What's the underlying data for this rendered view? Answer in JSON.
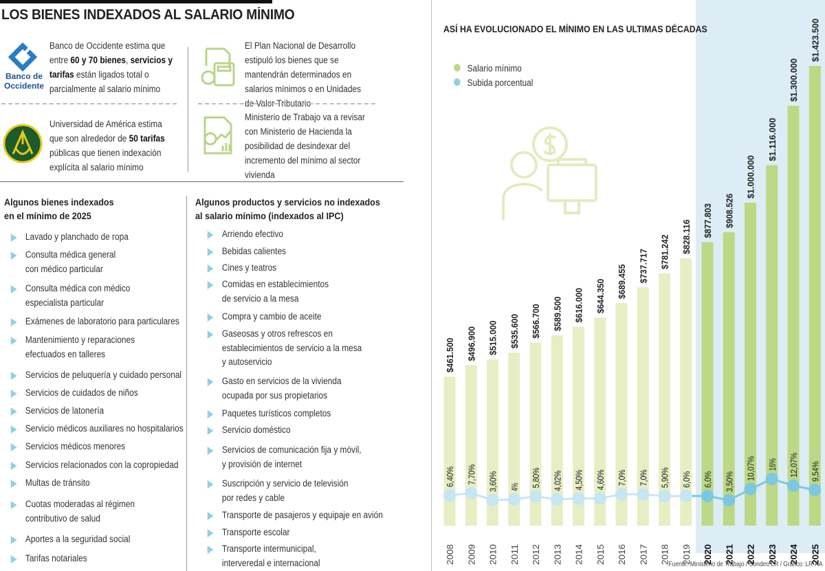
{
  "title": "LOS BIENES INDEXADOS AL SALARIO MÍNIMO",
  "notes": [
    {
      "logo": "Banco de Occidente",
      "pre": "Banco de Occidente estima que entre ",
      "bold1": "60 y 70 bienes",
      "mid": ", ",
      "bold2": "servicios y tarifas",
      "post": " están ligados total o parcialmente al salario mínimo"
    },
    {
      "logo": "Universidad de América",
      "pre": "Universidad de América estima que son alrededor de ",
      "bold1": "50 tarifas",
      "post": " públicas que tienen indexación explícita al salario mínimo"
    },
    {
      "icon": "calculator-coins-icon",
      "text": "El Plan Nacional de Desarrollo estipuló los bienes que se mantendrán determinados en salarios mínimos o en Unidades de Valor Tributario"
    },
    {
      "icon": "document-chart-coins-icon",
      "text": "Ministerio de Trabajo va a revisar con Ministerio de Hacienda la posibilidad de desindexar del incremento del mínimo al sector vivienda"
    }
  ],
  "indexed": {
    "heading": [
      "Algunos bienes indexados",
      "en el mínimo de 2025"
    ],
    "items": [
      [
        "Lavado y planchado de ropa"
      ],
      [
        "Consulta médica general",
        "con médico particular"
      ],
      [
        "Consulta médica con médico",
        "especialista particular"
      ],
      [
        "Exámenes de laboratorio para particulares"
      ],
      [
        "Mantenimiento y reparaciones",
        "efectuados en talleres"
      ],
      [
        "Servicios de peluquería y cuidado personal"
      ],
      [
        "Servicios de cuidados de niños"
      ],
      [
        "Servicios de latonería"
      ],
      [
        "Servicio médicos auxiliares no hospitalarios"
      ],
      [
        "Servicios médicos menores"
      ],
      [
        "Servicios relacionados con la copropiedad"
      ],
      [
        "Multas de tránsito"
      ],
      [
        "Cuotas moderadas al régimen",
        "contributivo de salud"
      ],
      [
        "Aportes a la seguridad social"
      ],
      [
        "Tarifas notariales"
      ]
    ]
  },
  "not_indexed": {
    "heading": [
      "Algunos productos y servicios no indexados",
      "al salario mínimo (indexados al IPC)"
    ],
    "items": [
      [
        "Arriendo efectivo"
      ],
      [
        "Bebidas calientes"
      ],
      [
        "Cines y teatros"
      ],
      [
        "Comidas en establecimientos",
        "de servicio a la mesa"
      ],
      [
        "Compra y cambio de aceite"
      ],
      [
        "Gaseosas y otros refrescos en",
        "establecimientos de servicio a la mesa",
        "y autoservicio"
      ],
      [
        "Gasto en servicios de la vivienda",
        "ocupada por sus propietarios"
      ],
      [
        "Paquetes turísticos completos"
      ],
      [
        "Servicio doméstico"
      ],
      [
        "Servicios de comunicación fija y móvil,",
        "y provisión de internet"
      ],
      [
        "Suscripción y servicio de televisión",
        "por redes y cable"
      ],
      [
        "Transporte de pasajeros y equipaje en avión"
      ],
      [
        "Transporte escolar"
      ],
      [
        "Transporte intermunicipal,",
        "interveredal e internacional"
      ]
    ]
  },
  "chart_data": {
    "type": "bar",
    "title": "ASÍ HA EVOLUCIONADO EL MÍNIMO EN LAS ULTIMAS DÉCADAS",
    "categories": [
      "2008",
      "2009",
      "2010",
      "2011",
      "2012",
      "2013",
      "2014",
      "2015",
      "2016",
      "2017",
      "2018",
      "2019",
      "2020",
      "2021",
      "2022",
      "2023",
      "2024",
      "2025"
    ],
    "series": [
      {
        "name": "Salario mínimo",
        "type": "bar",
        "values": [
          461500,
          496900,
          515000,
          535600,
          566700,
          589500,
          616000,
          644350,
          689455,
          737717,
          781242,
          828116,
          877803,
          908526,
          1000000,
          1116000,
          1300000,
          1423500
        ],
        "labels": [
          "$461.500",
          "$496.900",
          "$515.000",
          "$535.600",
          "$566.700",
          "$589.500",
          "$616.000",
          "$644.350",
          "$689.455",
          "$737.717",
          "$781.242",
          "$828.116",
          "$877.803",
          "$908.526",
          "$1.000.000",
          "$1.116.000",
          "$1.300.000",
          "$1.423.500"
        ],
        "color": "#e6eec4",
        "highlight_color": "#bcd884"
      },
      {
        "name": "Subida porcentual",
        "type": "line",
        "values": [
          6.4,
          7.7,
          3.6,
          4,
          5.8,
          4.02,
          4.5,
          4.6,
          7.0,
          7.0,
          5.9,
          6.0,
          6.0,
          3.5,
          10.07,
          16,
          12.07,
          9.54
        ],
        "labels": [
          "6,40%",
          "7,70%",
          "3,60%",
          "4%",
          "5,80%",
          "4,02%",
          "4,50%",
          "4,60%",
          "7,0%",
          "7,0%",
          "5,90%",
          "6,0%",
          "6,0%",
          "3,50%",
          "10,07%",
          "16%",
          "12,07%",
          "9,54%"
        ],
        "color": "#c5e6f2",
        "highlight_color": "#7cc8e2"
      }
    ],
    "highlight_range": [
      "2020",
      "2025"
    ],
    "highlight_bg": "#dcedf5",
    "legend": "top-left",
    "grid": false,
    "source": "Fuente: Ministerio de Trabajo / Sondeo LR / Gráfico: LR-AA"
  }
}
